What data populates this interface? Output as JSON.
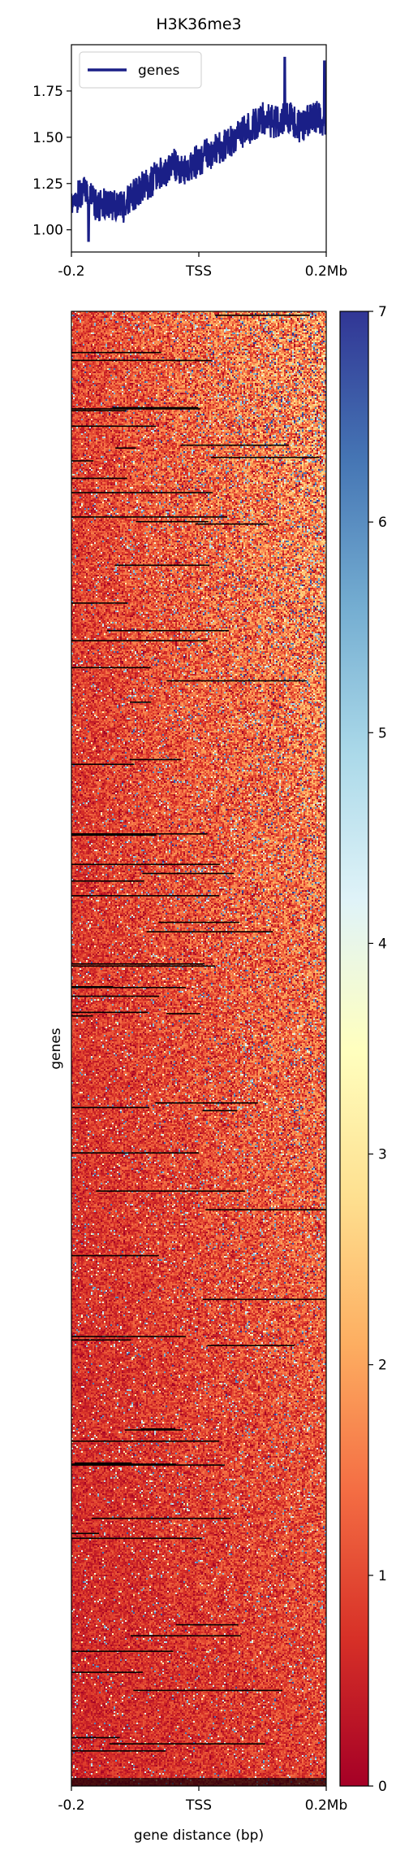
{
  "chart_data": [
    {
      "type": "line",
      "title": "H3K36me3",
      "xlabel": "",
      "ylabel": "",
      "xlim": [
        -0.2,
        0.2
      ],
      "ylim": [
        0.88,
        2.0
      ],
      "x_ticks": [
        {
          "value": -0.2,
          "label": "-0.2"
        },
        {
          "value": 0.0,
          "label": "TSS"
        },
        {
          "value": 0.2,
          "label": "0.2Mb"
        }
      ],
      "y_ticks": [
        1.0,
        1.25,
        1.5,
        1.75
      ],
      "y_tick_labels": [
        "1.00",
        "1.25",
        "1.50",
        "1.75"
      ],
      "legend": {
        "position": "top-left",
        "entries": [
          "genes"
        ]
      },
      "series": [
        {
          "name": "genes",
          "color": "#1a1f87",
          "x": [
            -0.2,
            -0.18,
            -0.16,
            -0.14,
            -0.12,
            -0.1,
            -0.08,
            -0.06,
            -0.04,
            -0.02,
            0.0,
            0.02,
            0.04,
            0.06,
            0.08,
            0.1,
            0.12,
            0.14,
            0.16,
            0.18,
            0.2
          ],
          "values": [
            1.15,
            1.2,
            1.13,
            1.14,
            1.12,
            1.2,
            1.25,
            1.3,
            1.35,
            1.32,
            1.38,
            1.42,
            1.45,
            1.5,
            1.55,
            1.6,
            1.58,
            1.62,
            1.55,
            1.62,
            1.58
          ],
          "band_half_width": 0.09,
          "peaks": [
            {
              "x": 0.135,
              "y": 1.93
            },
            {
              "x": 0.197,
              "y": 1.91
            },
            {
              "x": -0.173,
              "y": 0.94
            }
          ]
        }
      ]
    },
    {
      "type": "heatmap",
      "xlabel": "gene distance (bp)",
      "ylabel": "genes",
      "xlim": [
        -0.2,
        0.2
      ],
      "x_ticks": [
        {
          "value": -0.2,
          "label": "-0.2"
        },
        {
          "value": 0.0,
          "label": "TSS"
        },
        {
          "value": 0.2,
          "label": "0.2Mb"
        }
      ],
      "colormap": "RdYlBu",
      "colormap_stops": [
        "#a50026",
        "#d73027",
        "#f46d43",
        "#fdae61",
        "#fee090",
        "#ffffbf",
        "#e0f3f8",
        "#abd9e9",
        "#74add1",
        "#4575b4",
        "#313695"
      ],
      "zlim": [
        0,
        7
      ],
      "colorbar_ticks": [
        0,
        1,
        2,
        3,
        4,
        5,
        6,
        7
      ],
      "colorbar_tick_labels": [
        "0",
        "1",
        "2",
        "3",
        "4",
        "5",
        "6",
        "7"
      ],
      "trend": "signal increases from the TSS side (left) to the right edge and from bottom rows to top rows; rows are mostly low values (red) with sparse high values (blue); a few rows are missing-data (black)"
    }
  ]
}
